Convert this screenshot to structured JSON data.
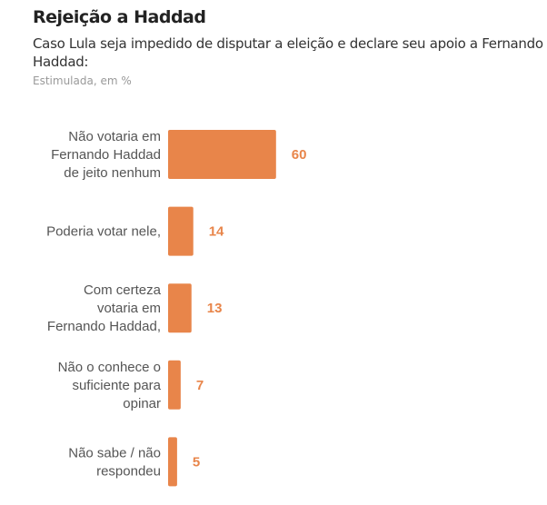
{
  "chart_data": {
    "type": "bar",
    "orientation": "horizontal",
    "title": "Rejeição a Haddad",
    "subtitle": "Caso Lula seja impedido de disputar a eleição e declare seu apoio a Fernando Haddad:",
    "note": "Estimulada, em %",
    "categories": [
      [
        "Não votaria em",
        "Fernando Haddad",
        "de jeito nenhum"
      ],
      [
        "Poderia votar nele,"
      ],
      [
        "Com certeza",
        "votaria em",
        "Fernando Haddad,"
      ],
      [
        "Não o conhece o",
        "suficiente para",
        "opinar"
      ],
      [
        "Não sabe / não",
        "respondeu"
      ]
    ],
    "values": [
      60,
      14,
      13,
      7,
      5
    ],
    "labels": [
      "60",
      "14",
      "13",
      "7",
      "5"
    ],
    "color": "#E8854A",
    "grid": false
  }
}
